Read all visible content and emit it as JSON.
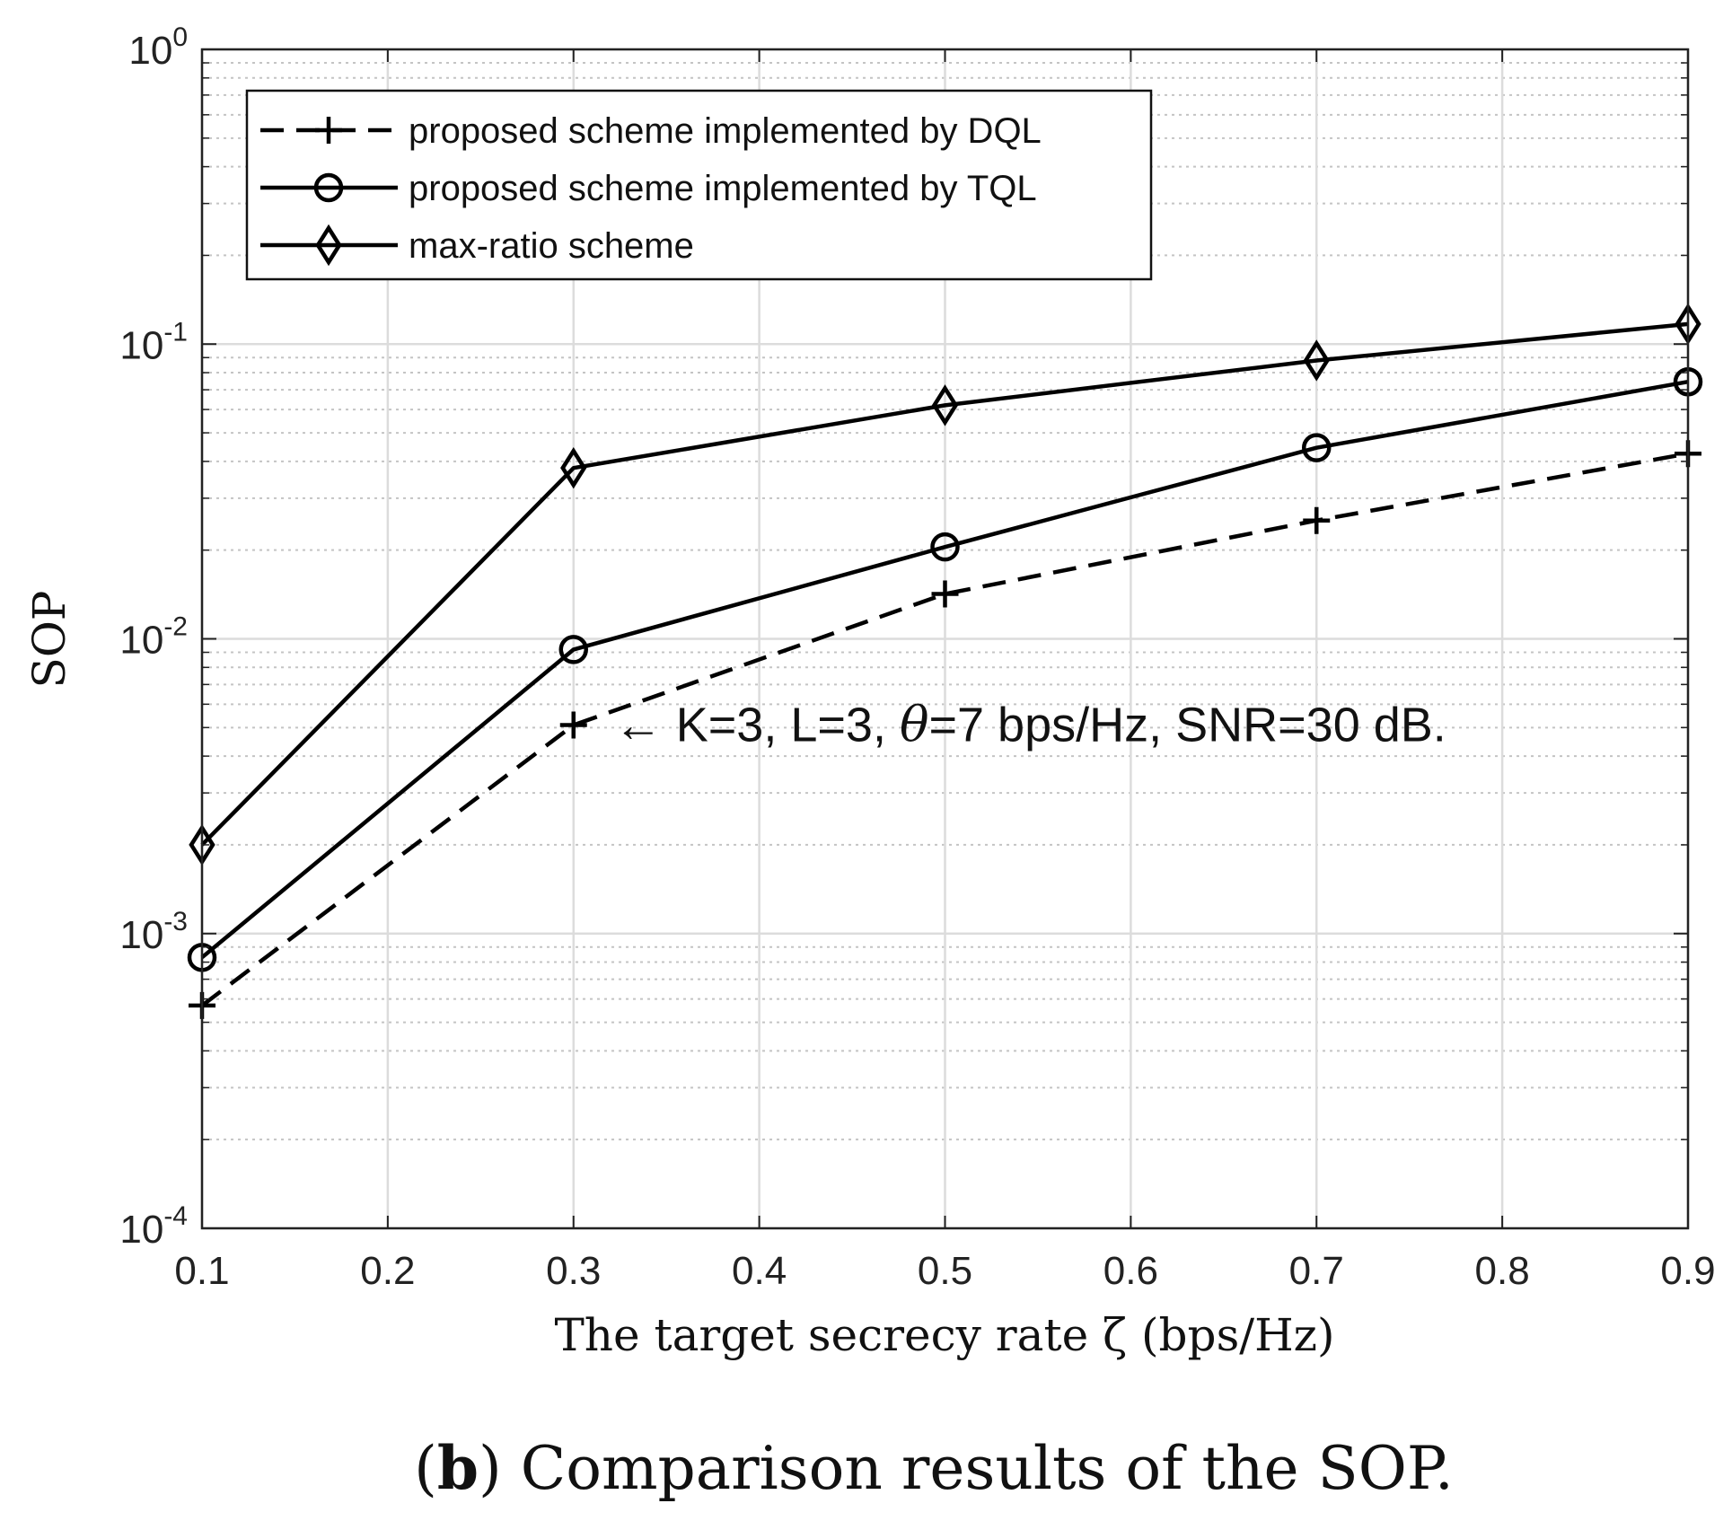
{
  "chart_data": {
    "type": "line",
    "y_scale": "log",
    "x": [
      0.1,
      0.3,
      0.5,
      0.7,
      0.9
    ],
    "xlim": [
      0.1,
      0.9
    ],
    "ylim": [
      0.0001,
      1
    ],
    "x_ticks": [
      "0.1",
      "0.2",
      "0.3",
      "0.4",
      "0.5",
      "0.6",
      "0.7",
      "0.8",
      "0.9"
    ],
    "x_tick_values": [
      0.1,
      0.2,
      0.3,
      0.4,
      0.5,
      0.6,
      0.7,
      0.8,
      0.9
    ],
    "y_ticks": [
      {
        "value": 1,
        "base": "10",
        "exp": "0"
      },
      {
        "value": 0.1,
        "base": "10",
        "exp": "-1"
      },
      {
        "value": 0.01,
        "base": "10",
        "exp": "-2"
      },
      {
        "value": 0.001,
        "base": "10",
        "exp": "-3"
      },
      {
        "value": 0.0001,
        "base": "10",
        "exp": "-4"
      }
    ],
    "xlabel": "The target secrecy rate ζ (bps/Hz)",
    "ylabel": "SOP",
    "grid": true,
    "legend_position": "top-left",
    "series": [
      {
        "name": "proposed scheme implemented by DQL",
        "line": "dashed",
        "marker": "plus",
        "color": "#000000",
        "values": [
          0.00057,
          0.0051,
          0.0142,
          0.0252,
          0.0425
        ]
      },
      {
        "name": " proposed scheme implemented by TQL",
        "line": "solid",
        "marker": "circle",
        "color": "#000000",
        "values": [
          0.00083,
          0.0092,
          0.0205,
          0.0445,
          0.0745
        ]
      },
      {
        "name": "max-ratio scheme",
        "line": "solid",
        "marker": "diamond",
        "color": "#000000",
        "values": [
          0.002,
          0.038,
          0.062,
          0.088,
          0.117
        ]
      }
    ],
    "annotation": {
      "arrow": "←",
      "prefix": " K=3, L=3, ",
      "symbol": "θ",
      "suffix": "=7 bps/Hz, SNR=30 dB.",
      "x": 0.3,
      "y": 0.0051
    }
  },
  "caption": {
    "open_paren": "(",
    "letter": "b",
    "close_paren": ")",
    "text": " Comparison results of the SOP."
  }
}
